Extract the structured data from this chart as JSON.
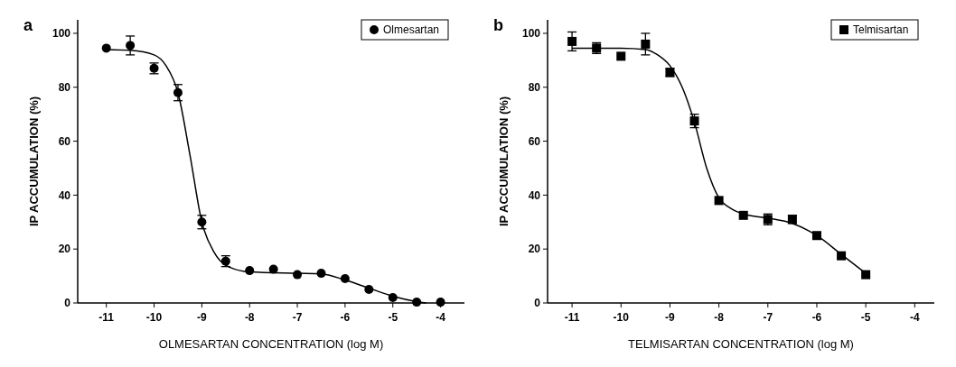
{
  "chart_data": [
    {
      "type": "scatter",
      "title": "a",
      "xlabel": "OLMESARTAN CONCENTRATION (log M)",
      "ylabel": "IP ACCUMULATION (%)",
      "xlim": [
        -11.6,
        -3.5
      ],
      "xticks": [
        -11,
        -10,
        -9,
        -8,
        -7,
        -6,
        -5,
        -4
      ],
      "ylim": [
        0,
        105
      ],
      "yticks": [
        0,
        20,
        40,
        60,
        80,
        100
      ],
      "legend": "top right",
      "grid": false,
      "series": [
        {
          "name": "Olmesartan",
          "color": "#000000",
          "marker": "circle",
          "x": [
            -11,
            -10.5,
            -10,
            -9.5,
            -9,
            -8.5,
            -8,
            -7.5,
            -7,
            -6.5,
            -6,
            -5.5,
            -5,
            -4.5,
            -4
          ],
          "values": [
            94.5,
            95.5,
            87,
            78,
            30,
            15.5,
            12,
            12.5,
            10.5,
            11,
            9,
            5,
            2,
            0.3,
            0.3
          ],
          "errors": [
            null,
            3.5,
            2,
            3,
            2.5,
            2,
            null,
            null,
            null,
            null,
            null,
            null,
            null,
            null,
            null
          ]
        },
        {
          "type": "line",
          "color": "#000000",
          "line_style": "solid",
          "x": [
            -11,
            -10.5,
            -10,
            -9.75,
            -9.5,
            -9.25,
            -9,
            -8.75,
            -8.5,
            -8,
            -7,
            -6.5,
            -6,
            -5.5,
            -5,
            -4.5,
            -4.3
          ],
          "values": [
            94,
            93.7,
            92,
            88,
            78,
            55,
            30,
            19,
            14,
            11.5,
            11,
            10.8,
            8.5,
            5.5,
            2.5,
            0.5,
            0
          ]
        }
      ]
    },
    {
      "type": "scatter",
      "title": "b",
      "xlabel": "TELMISARTAN CONCENTRATION (log M)",
      "ylabel": "IP ACCUMULATION (%)",
      "xlim": [
        -11.5,
        -3.6
      ],
      "xticks": [
        -11,
        -10,
        -9,
        -8,
        -7,
        -6,
        -5,
        -4
      ],
      "ylim": [
        0,
        105
      ],
      "yticks": [
        0,
        20,
        40,
        60,
        80,
        100
      ],
      "legend": "top right",
      "grid": false,
      "series": [
        {
          "name": "Telmisartan",
          "color": "#000000",
          "marker": "square",
          "x": [
            -11,
            -10.5,
            -10,
            -9.5,
            -9,
            -8.5,
            -8,
            -7.5,
            -7,
            -6.5,
            -6,
            -5.5,
            -5
          ],
          "values": [
            97,
            94.5,
            91.5,
            96,
            85.5,
            67.5,
            38,
            32.5,
            31,
            31,
            25,
            17.5,
            10.5
          ],
          "errors": [
            3.5,
            2,
            null,
            4,
            1.5,
            2.5,
            null,
            null,
            2,
            1.5,
            null,
            null,
            null
          ]
        },
        {
          "type": "line",
          "color": "#000000",
          "line_style": "solid",
          "x": [
            -11,
            -10,
            -9.5,
            -9.25,
            -9,
            -8.75,
            -8.5,
            -8.25,
            -8,
            -7.75,
            -7.5,
            -7,
            -6.5,
            -6,
            -5.5,
            -5
          ],
          "values": [
            94.5,
            94.5,
            94,
            92,
            88,
            80,
            67,
            50,
            39,
            35,
            33,
            31.5,
            29.5,
            25,
            18,
            11
          ]
        }
      ]
    }
  ]
}
